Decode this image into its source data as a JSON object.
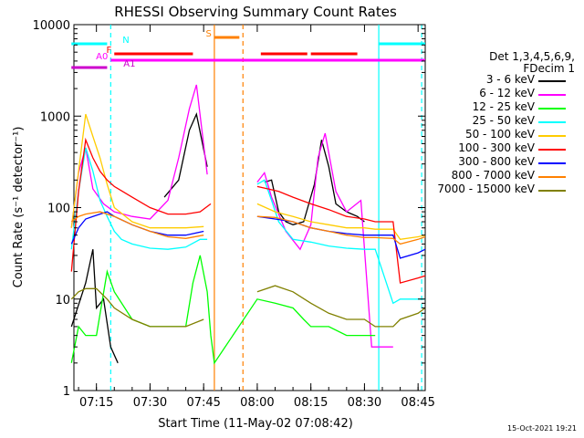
{
  "chart_data": {
    "type": "line",
    "title": "RHESSI Observing Summary Count Rates",
    "xlabel": "Start Time (11-May-02 07:08:42)",
    "ylabel": "Count Rate (s⁻¹ detector⁻¹)",
    "yscale": "log",
    "ylim": [
      1,
      10000
    ],
    "xlim": [
      "07:08:42",
      "08:47:00"
    ],
    "x_ticks": [
      "07:15",
      "07:30",
      "07:45",
      "08:00",
      "08:15",
      "08:30",
      "08:45"
    ],
    "y_ticks": [
      "1",
      "10",
      "100",
      "1000",
      "10000"
    ],
    "grid": false,
    "legend_title": [
      "Det 1,3,4,5,6,9,",
      "FDecim 1"
    ],
    "legend_position": "right",
    "series": [
      {
        "name": "3 - 6 keV",
        "color": "#000000",
        "x": [
          "07:08",
          "07:12",
          "07:14",
          "07:15",
          "07:17",
          "07:19",
          "07:21",
          "07:25",
          "07:30",
          "07:34",
          "07:38",
          "07:41",
          "07:43",
          "07:46",
          "07:48",
          "08:00",
          "08:02",
          "08:04",
          "08:06",
          "08:08",
          "08:10",
          "08:13",
          "08:16",
          "08:18",
          "08:20",
          "08:22",
          "08:25",
          "08:28",
          "08:30"
        ],
        "y": [
          5,
          15,
          35,
          8,
          10,
          3,
          2,
          null,
          null,
          130,
          200,
          700,
          1050,
          280,
          null,
          null,
          190,
          200,
          90,
          70,
          65,
          70,
          180,
          550,
          280,
          110,
          90,
          80,
          70
        ]
      },
      {
        "name": "6 - 12 keV",
        "color": "#ff00ff",
        "x": [
          "07:08",
          "07:10",
          "07:12",
          "07:14",
          "07:17",
          "07:20",
          "07:25",
          "07:30",
          "07:35",
          "07:38",
          "07:41",
          "07:43",
          "07:46",
          "07:48",
          "08:00",
          "08:02",
          "08:04",
          "08:08",
          "08:12",
          "08:15",
          "08:17",
          "08:19",
          "08:22",
          "08:25",
          "08:29",
          "08:32",
          "08:35",
          "08:38"
        ],
        "y": [
          60,
          240,
          450,
          160,
          110,
          90,
          80,
          75,
          120,
          350,
          1200,
          2200,
          230,
          null,
          190,
          240,
          130,
          55,
          35,
          65,
          350,
          650,
          150,
          90,
          120,
          3,
          3,
          3
        ]
      },
      {
        "name": "12 - 25 keV",
        "color": "#00ff00",
        "x": [
          "07:08",
          "07:10",
          "07:12",
          "07:15",
          "07:18",
          "07:20",
          "07:25",
          "07:30",
          "07:35",
          "07:40",
          "07:42",
          "07:44",
          "07:46",
          "07:47",
          "07:48",
          "08:00",
          "08:05",
          "08:10",
          "08:13",
          "08:15",
          "08:20",
          "08:25",
          "08:30",
          "08:33"
        ],
        "y": [
          2,
          5,
          4,
          4,
          20,
          12,
          6,
          5,
          5,
          5,
          15,
          30,
          12,
          4,
          2,
          10,
          9,
          8,
          6,
          5,
          5,
          4,
          4,
          4
        ]
      },
      {
        "name": "25 - 50 keV",
        "color": "#00ffff",
        "x": [
          "07:08",
          "07:10",
          "07:12",
          "07:14",
          "07:16",
          "07:18",
          "07:20",
          "07:22",
          "07:25",
          "07:30",
          "07:35",
          "07:40",
          "07:44",
          "07:46",
          "07:48",
          "08:00",
          "08:02",
          "08:04",
          "08:06",
          "08:10",
          "08:15",
          "08:20",
          "08:25",
          "08:30",
          "08:33",
          "08:38",
          "08:40",
          "08:42",
          "08:47"
        ],
        "y": [
          35,
          150,
          450,
          250,
          120,
          80,
          55,
          45,
          40,
          36,
          35,
          37,
          45,
          45,
          null,
          180,
          200,
          120,
          70,
          45,
          42,
          38,
          36,
          35,
          35,
          9,
          10,
          10,
          10
        ]
      },
      {
        "name": "50 - 100 keV",
        "color": "#ffcc00",
        "x": [
          "07:08",
          "07:10",
          "07:12",
          "07:14",
          "07:16",
          "07:18",
          "07:20",
          "07:25",
          "07:30",
          "07:35",
          "07:40",
          "07:45",
          "07:48",
          "08:00",
          "08:05",
          "08:10",
          "08:15",
          "08:20",
          "08:25",
          "08:30",
          "08:33",
          "08:38",
          "08:40",
          "08:45",
          "08:47"
        ],
        "y": [
          60,
          250,
          1050,
          600,
          350,
          180,
          100,
          70,
          60,
          60,
          60,
          62,
          null,
          110,
          90,
          80,
          70,
          65,
          60,
          60,
          58,
          58,
          45,
          48,
          50
        ]
      },
      {
        "name": "100 - 300 keV",
        "color": "#ff0000",
        "x": [
          "07:08",
          "07:10",
          "07:12",
          "07:14",
          "07:16",
          "07:18",
          "07:20",
          "07:25",
          "07:30",
          "07:35",
          "07:40",
          "07:44",
          "07:47",
          "07:48",
          "08:00",
          "08:03",
          "08:06",
          "08:10",
          "08:15",
          "08:20",
          "08:25",
          "08:30",
          "08:33",
          "08:36",
          "08:38",
          "08:40",
          "08:45",
          "08:47"
        ],
        "y": [
          20,
          150,
          550,
          350,
          250,
          200,
          170,
          130,
          100,
          85,
          85,
          90,
          110,
          null,
          170,
          160,
          150,
          130,
          110,
          95,
          80,
          75,
          70,
          70,
          70,
          15,
          17,
          18
        ]
      },
      {
        "name": "300 - 800 keV",
        "color": "#0000ff",
        "x": [
          "07:08",
          "07:10",
          "07:12",
          "07:14",
          "07:16",
          "07:18",
          "07:20",
          "07:25",
          "07:30",
          "07:35",
          "07:40",
          "07:45",
          "07:48",
          "08:00",
          "08:05",
          "08:10",
          "08:15",
          "08:20",
          "08:25",
          "08:30",
          "08:33",
          "08:38",
          "08:40",
          "08:45",
          "08:47"
        ],
        "y": [
          40,
          60,
          75,
          80,
          85,
          90,
          80,
          65,
          55,
          50,
          50,
          55,
          null,
          80,
          75,
          70,
          60,
          55,
          52,
          50,
          50,
          50,
          28,
          32,
          35
        ]
      },
      {
        "name": "800 - 7000 keV",
        "color": "#ff8000",
        "x": [
          "07:08",
          "07:10",
          "07:12",
          "07:16",
          "07:20",
          "07:25",
          "07:30",
          "07:35",
          "07:40",
          "07:45",
          "07:48",
          "08:00",
          "08:05",
          "08:10",
          "08:15",
          "08:20",
          "08:25",
          "08:30",
          "08:33",
          "08:38",
          "08:40",
          "08:45",
          "08:47"
        ],
        "y": [
          70,
          80,
          85,
          90,
          80,
          65,
          55,
          48,
          46,
          50,
          null,
          80,
          78,
          70,
          60,
          55,
          50,
          47,
          47,
          46,
          40,
          45,
          48
        ]
      },
      {
        "name": "7000 - 15000 keV",
        "color": "#808000",
        "x": [
          "07:08",
          "07:10",
          "07:12",
          "07:15",
          "07:18",
          "07:20",
          "07:25",
          "07:30",
          "07:35",
          "07:40",
          "07:45",
          "07:48",
          "08:00",
          "08:05",
          "08:10",
          "08:15",
          "08:20",
          "08:25",
          "08:30",
          "08:33",
          "08:38",
          "08:40",
          "08:45",
          "08:47"
        ],
        "y": [
          10,
          12,
          13,
          13,
          10,
          8,
          6,
          5,
          5,
          5,
          6,
          null,
          12,
          14,
          12,
          9,
          7,
          6,
          6,
          5,
          5,
          6,
          7,
          8
        ]
      }
    ],
    "flag_bars": [
      {
        "label": "N",
        "color": "#00ffff",
        "segments": [
          [
            "07:08",
            "07:18"
          ],
          [
            "08:34",
            "08:47"
          ]
        ]
      },
      {
        "label": "F",
        "color": "#ff0000",
        "segments": [
          [
            "07:20",
            "07:42"
          ],
          [
            "08:01",
            "08:14"
          ],
          [
            "08:15",
            "08:28"
          ]
        ]
      },
      {
        "label": "A0",
        "color": "#ff00ff",
        "segments": [
          [
            "07:19",
            "08:47"
          ]
        ]
      },
      {
        "label": "A1",
        "color": "#cc00cc",
        "segments": [
          [
            "07:08",
            "07:18"
          ]
        ]
      },
      {
        "label": "S",
        "color": "#ff8000",
        "segments": [
          [
            "07:48",
            "07:55"
          ]
        ]
      }
    ],
    "vertical_markers": [
      {
        "time": "07:19",
        "color": "#00ffff",
        "style": "dashed"
      },
      {
        "time": "07:48",
        "color": "#ff8000",
        "style": "solid"
      },
      {
        "time": "07:56",
        "color": "#ff8000",
        "style": "dashed"
      },
      {
        "time": "08:34",
        "color": "#00ffff",
        "style": "solid"
      },
      {
        "time": "08:46",
        "color": "#00ffff",
        "style": "dashed"
      }
    ]
  },
  "footer": {
    "timestamp": "15-Oct-2021 19:21"
  }
}
